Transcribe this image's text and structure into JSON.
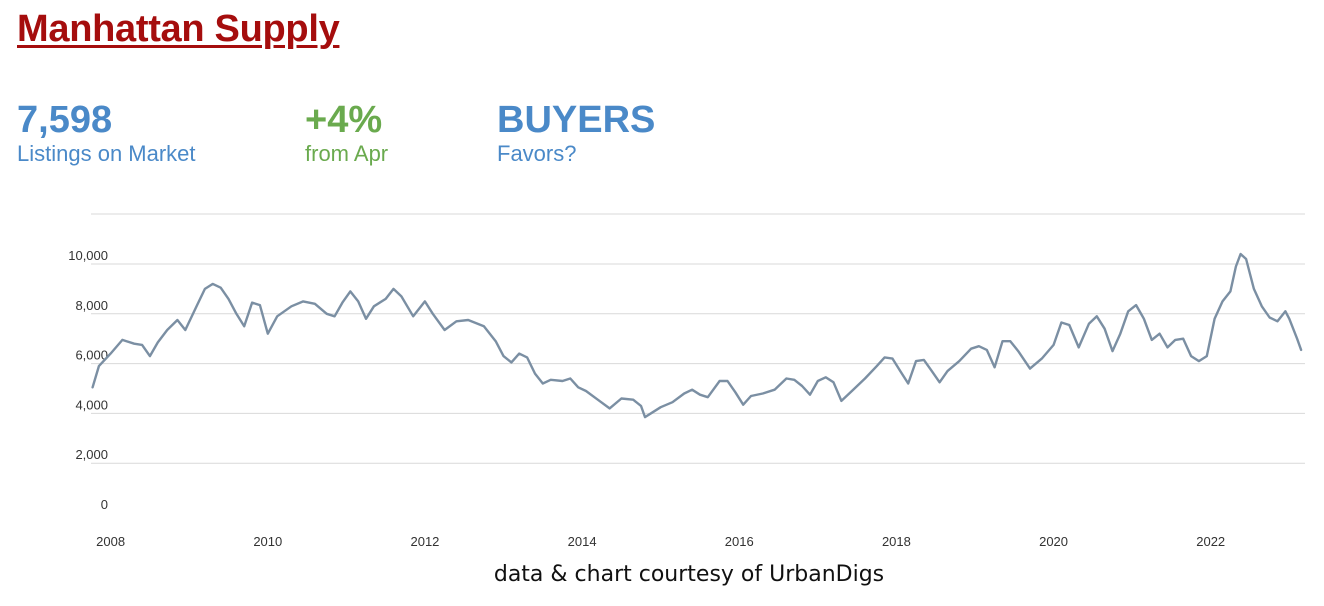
{
  "header": {
    "title": "Manhattan Supply"
  },
  "stats": [
    {
      "value": "7,598",
      "label": "Listings on Market",
      "color": "#4a89c8"
    },
    {
      "value": "+4%",
      "label": "from Apr",
      "color": "#6aaa4e"
    },
    {
      "value": "BUYERS",
      "label": "Favors?",
      "color": "#4a89c8"
    }
  ],
  "credit": "data & chart courtesy of UrbanDigs",
  "colors": {
    "title": "#a50d0d",
    "line": "#7b8fa3",
    "grid": "#d9d9d9"
  },
  "chart_data": {
    "type": "line",
    "title": "",
    "xlabel": "",
    "ylabel": "",
    "ylim": [
      0,
      12000
    ],
    "xlim": [
      2007.75,
      2023.2
    ],
    "grid": true,
    "y_ticks": [
      0,
      2000,
      4000,
      6000,
      8000,
      10000
    ],
    "y_tick_labels": [
      "0",
      "2,000",
      "4,000",
      "6,000",
      "8,000",
      "10,000"
    ],
    "x_ticks": [
      2008,
      2010,
      2012,
      2014,
      2016,
      2018,
      2020,
      2022
    ],
    "x_tick_labels": [
      "2008",
      "2010",
      "2012",
      "2014",
      "2016",
      "2018",
      "2020",
      "2022"
    ],
    "series": [
      {
        "color": "#7b8fa3",
        "points": [
          [
            2007.77,
            5050
          ],
          [
            2007.85,
            5900
          ],
          [
            2008.0,
            6400
          ],
          [
            2008.15,
            6950
          ],
          [
            2008.3,
            6800
          ],
          [
            2008.4,
            6750
          ],
          [
            2008.5,
            6300
          ],
          [
            2008.6,
            6850
          ],
          [
            2008.72,
            7350
          ],
          [
            2008.85,
            7750
          ],
          [
            2008.95,
            7350
          ],
          [
            2009.1,
            8350
          ],
          [
            2009.2,
            9000
          ],
          [
            2009.3,
            9200
          ],
          [
            2009.4,
            9050
          ],
          [
            2009.5,
            8600
          ],
          [
            2009.6,
            8000
          ],
          [
            2009.7,
            7500
          ],
          [
            2009.8,
            8450
          ],
          [
            2009.9,
            8350
          ],
          [
            2010.0,
            7200
          ],
          [
            2010.12,
            7900
          ],
          [
            2010.3,
            8300
          ],
          [
            2010.45,
            8500
          ],
          [
            2010.6,
            8400
          ],
          [
            2010.75,
            8000
          ],
          [
            2010.85,
            7900
          ],
          [
            2010.95,
            8450
          ],
          [
            2011.05,
            8900
          ],
          [
            2011.15,
            8500
          ],
          [
            2011.25,
            7800
          ],
          [
            2011.35,
            8300
          ],
          [
            2011.5,
            8600
          ],
          [
            2011.6,
            9000
          ],
          [
            2011.7,
            8700
          ],
          [
            2011.85,
            7900
          ],
          [
            2012.0,
            8500
          ],
          [
            2012.1,
            8000
          ],
          [
            2012.25,
            7350
          ],
          [
            2012.4,
            7700
          ],
          [
            2012.55,
            7750
          ],
          [
            2012.75,
            7500
          ],
          [
            2012.9,
            6900
          ],
          [
            2013.0,
            6300
          ],
          [
            2013.1,
            6050
          ],
          [
            2013.2,
            6400
          ],
          [
            2013.3,
            6250
          ],
          [
            2013.4,
            5600
          ],
          [
            2013.5,
            5200
          ],
          [
            2013.6,
            5350
          ],
          [
            2013.75,
            5300
          ],
          [
            2013.85,
            5400
          ],
          [
            2013.95,
            5050
          ],
          [
            2014.05,
            4900
          ],
          [
            2014.2,
            4550
          ],
          [
            2014.35,
            4200
          ],
          [
            2014.5,
            4600
          ],
          [
            2014.65,
            4550
          ],
          [
            2014.75,
            4300
          ],
          [
            2014.8,
            3850
          ],
          [
            2014.9,
            4050
          ],
          [
            2015.0,
            4250
          ],
          [
            2015.15,
            4450
          ],
          [
            2015.3,
            4800
          ],
          [
            2015.4,
            4950
          ],
          [
            2015.5,
            4750
          ],
          [
            2015.6,
            4650
          ],
          [
            2015.75,
            5300
          ],
          [
            2015.85,
            5300
          ],
          [
            2015.95,
            4850
          ],
          [
            2016.05,
            4350
          ],
          [
            2016.15,
            4700
          ],
          [
            2016.3,
            4800
          ],
          [
            2016.45,
            4950
          ],
          [
            2016.6,
            5400
          ],
          [
            2016.7,
            5350
          ],
          [
            2016.8,
            5100
          ],
          [
            2016.9,
            4750
          ],
          [
            2017.0,
            5300
          ],
          [
            2017.1,
            5450
          ],
          [
            2017.2,
            5250
          ],
          [
            2017.3,
            4500
          ],
          [
            2017.45,
            4950
          ],
          [
            2017.6,
            5400
          ],
          [
            2017.75,
            5900
          ],
          [
            2017.85,
            6250
          ],
          [
            2017.95,
            6200
          ],
          [
            2018.05,
            5700
          ],
          [
            2018.15,
            5200
          ],
          [
            2018.25,
            6100
          ],
          [
            2018.35,
            6150
          ],
          [
            2018.45,
            5700
          ],
          [
            2018.55,
            5250
          ],
          [
            2018.65,
            5700
          ],
          [
            2018.8,
            6100
          ],
          [
            2018.95,
            6600
          ],
          [
            2019.05,
            6700
          ],
          [
            2019.15,
            6550
          ],
          [
            2019.25,
            5850
          ],
          [
            2019.35,
            6900
          ],
          [
            2019.45,
            6900
          ],
          [
            2019.55,
            6500
          ],
          [
            2019.7,
            5800
          ],
          [
            2019.85,
            6200
          ],
          [
            2020.0,
            6750
          ],
          [
            2020.1,
            7650
          ],
          [
            2020.2,
            7550
          ],
          [
            2020.32,
            6650
          ],
          [
            2020.45,
            7600
          ],
          [
            2020.55,
            7900
          ],
          [
            2020.65,
            7400
          ],
          [
            2020.75,
            6500
          ],
          [
            2020.85,
            7200
          ],
          [
            2020.95,
            8100
          ],
          [
            2021.05,
            8350
          ],
          [
            2021.15,
            7800
          ],
          [
            2021.25,
            6950
          ],
          [
            2021.35,
            7200
          ],
          [
            2021.45,
            6650
          ],
          [
            2021.55,
            6950
          ],
          [
            2021.65,
            7000
          ],
          [
            2021.75,
            6300
          ],
          [
            2021.85,
            6100
          ],
          [
            2021.95,
            6300
          ],
          [
            2022.05,
            7800
          ],
          [
            2022.15,
            8500
          ],
          [
            2022.25,
            8900
          ],
          [
            2022.32,
            9900
          ],
          [
            2022.38,
            10400
          ],
          [
            2022.45,
            10200
          ],
          [
            2022.55,
            9000
          ],
          [
            2022.65,
            8300
          ],
          [
            2022.75,
            7850
          ],
          [
            2022.85,
            7700
          ],
          [
            2022.95,
            8100
          ],
          [
            2023.0,
            7800
          ],
          [
            2023.1,
            7000
          ],
          [
            2023.15,
            6550
          ]
        ]
      }
    ]
  }
}
